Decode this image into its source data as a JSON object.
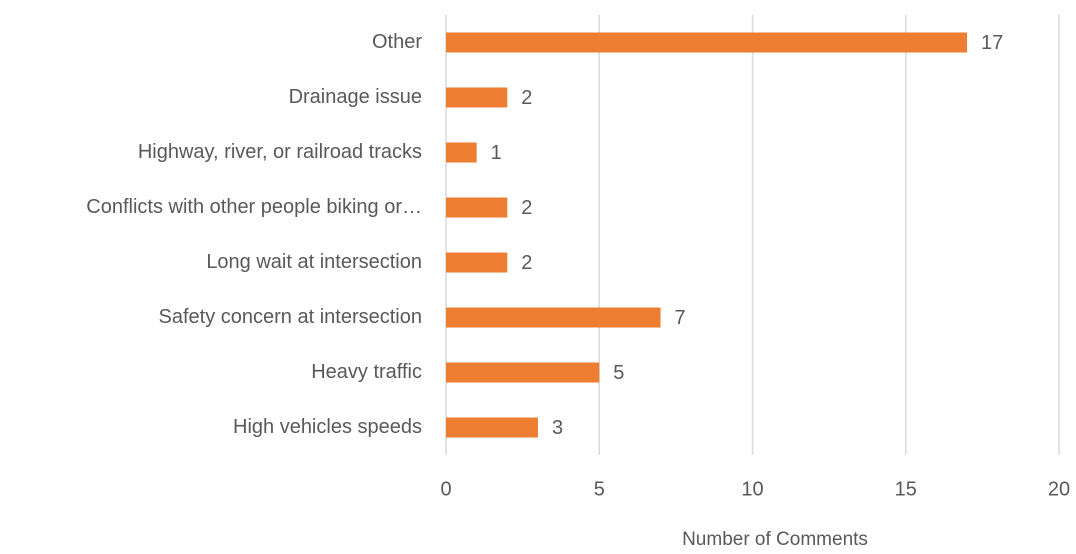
{
  "chart_data": {
    "type": "bar",
    "orientation": "horizontal",
    "categories": [
      "Other",
      "Drainage issue",
      "Highway, river, or railroad tracks",
      "Conflicts with other people biking or…",
      "Long wait at intersection",
      "Safety concern at intersection",
      "Heavy traffic",
      "High vehicles speeds"
    ],
    "values": [
      17,
      2,
      1,
      2,
      2,
      7,
      5,
      3
    ],
    "color": "#ed7d31",
    "x_label": "Number of Comments",
    "xlim": [
      0,
      20
    ],
    "xticks": [
      0,
      5,
      10,
      15,
      20
    ],
    "grid": true
  }
}
